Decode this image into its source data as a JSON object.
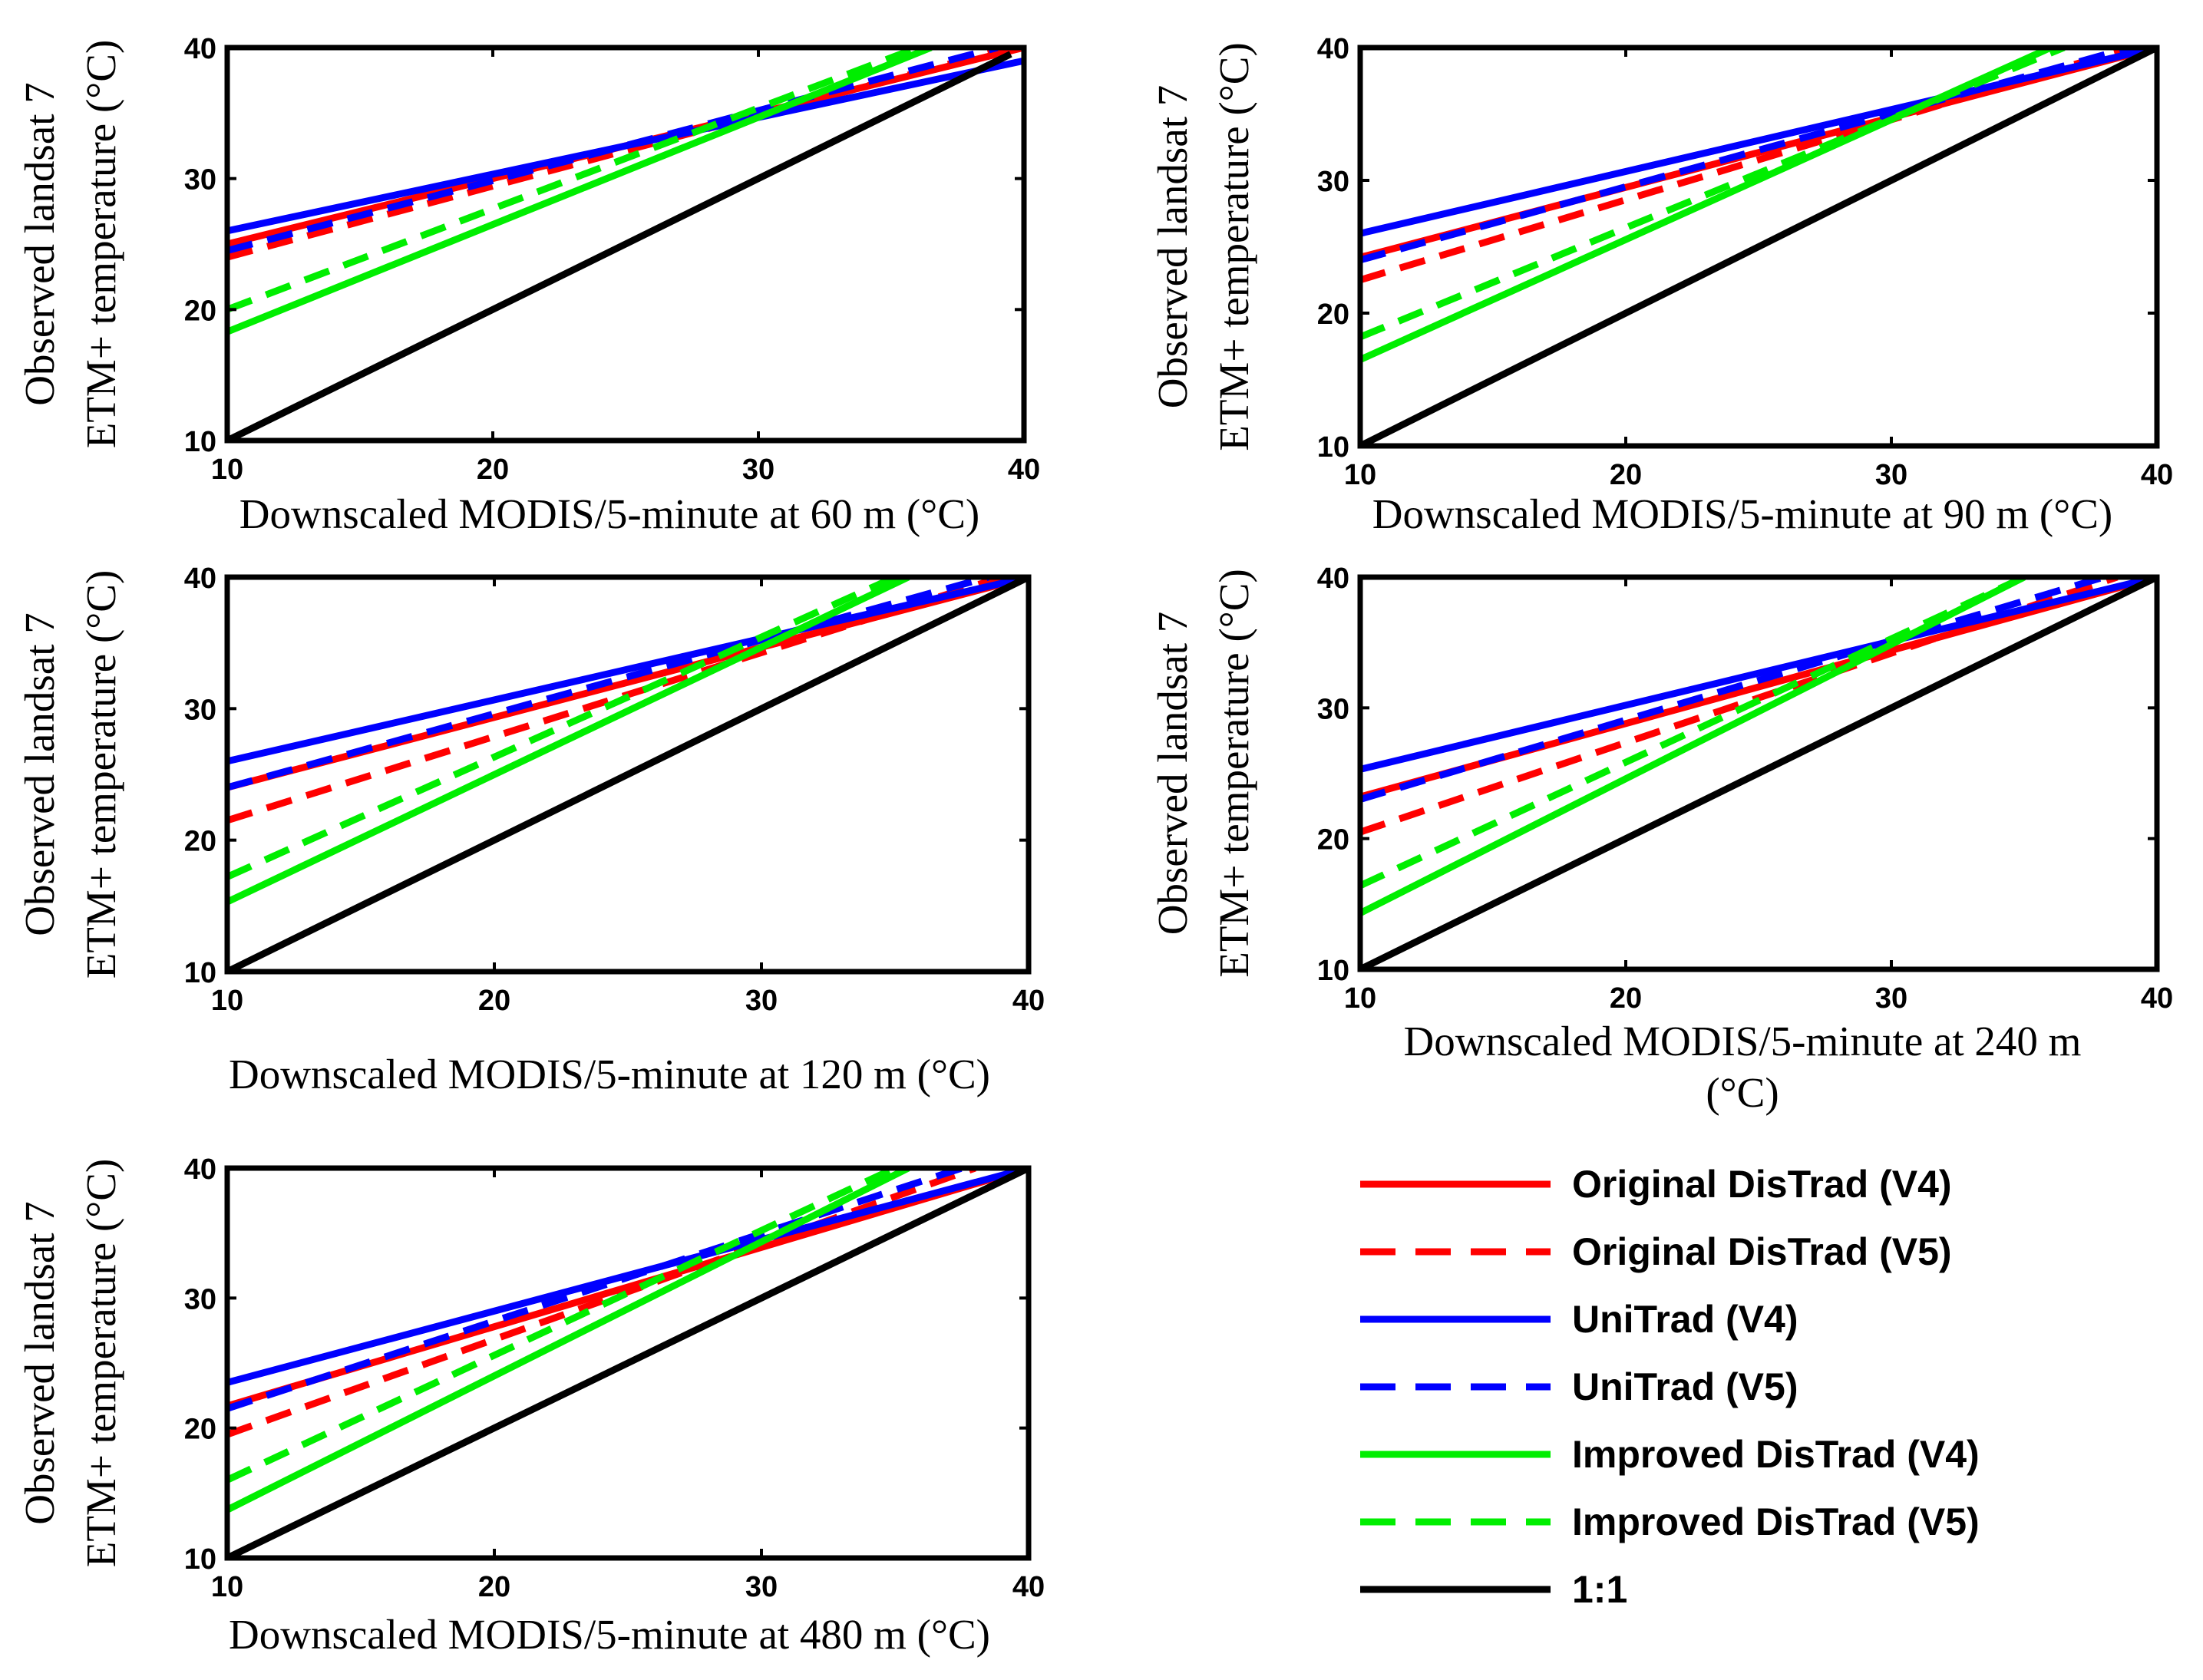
{
  "figure": {
    "y_label_line1": "Observed landsat 7",
    "y_label_line2": "ETM+ temperature (°C)"
  },
  "legend": [
    {
      "key": "orig_v4",
      "label": "Original DisTrad (V4)",
      "color": "#ff0000",
      "dashed": false
    },
    {
      "key": "orig_v5",
      "label": "Original DisTrad (V5)",
      "color": "#ff0000",
      "dashed": true
    },
    {
      "key": "uni_v4",
      "label": "UniTrad (V4)",
      "color": "#0000ff",
      "dashed": false
    },
    {
      "key": "uni_v5",
      "label": "UniTrad (V5)",
      "color": "#0000ff",
      "dashed": true
    },
    {
      "key": "imp_v4",
      "label": "Improved DisTrad (V4)",
      "color": "#00ee00",
      "dashed": false
    },
    {
      "key": "imp_v5",
      "label": "Improved DisTrad (V5)",
      "color": "#00ee00",
      "dashed": true
    },
    {
      "key": "one",
      "label": "1:1",
      "color": "#000000",
      "dashed": false
    }
  ],
  "chart_data": [
    {
      "type": "line",
      "xlabel": "Downscaled MODIS/5-minute at 60 m (°C)",
      "ylabel": "Observed landsat 7 ETM+ temperature (°C)",
      "xlim": [
        10,
        40
      ],
      "ylim": [
        10,
        40
      ],
      "xticks": [
        "10",
        "20",
        "30",
        "40"
      ],
      "yticks": [
        "10",
        "20",
        "30",
        "40"
      ],
      "series": [
        {
          "key": "orig_v4",
          "name": "Original DisTrad (V4)",
          "x": [
            10,
            40
          ],
          "y": [
            25,
            40
          ]
        },
        {
          "key": "orig_v5",
          "name": "Original DisTrad (V5)",
          "x": [
            10,
            39.5
          ],
          "y": [
            24,
            40
          ]
        },
        {
          "key": "uni_v4",
          "name": "UniTrad (V4)",
          "x": [
            10,
            40
          ],
          "y": [
            26,
            39
          ]
        },
        {
          "key": "uni_v5",
          "name": "UniTrad (V5)",
          "x": [
            10,
            39
          ],
          "y": [
            24.5,
            40
          ]
        },
        {
          "key": "imp_v4",
          "name": "Improved DisTrad (V4)",
          "x": [
            10,
            36.5
          ],
          "y": [
            18.3,
            40
          ]
        },
        {
          "key": "imp_v5",
          "name": "Improved DisTrad (V5)",
          "x": [
            10,
            36
          ],
          "y": [
            20,
            40
          ]
        },
        {
          "key": "one",
          "name": "1:1",
          "x": [
            10,
            39.5
          ],
          "y": [
            10,
            39.5
          ]
        }
      ]
    },
    {
      "type": "line",
      "xlabel": "Downscaled MODIS/5-minute at 90 m (°C)",
      "ylabel": "Observed landsat 7 ETM+ temperature (°C)",
      "xlim": [
        10,
        40
      ],
      "ylim": [
        10,
        40
      ],
      "xticks": [
        "10",
        "20",
        "30",
        "40"
      ],
      "yticks": [
        "10",
        "20",
        "30",
        "40"
      ],
      "series": [
        {
          "key": "orig_v4",
          "name": "Original DisTrad (V4)",
          "x": [
            10,
            40
          ],
          "y": [
            24.2,
            40
          ]
        },
        {
          "key": "orig_v5",
          "name": "Original DisTrad (V5)",
          "x": [
            10,
            39
          ],
          "y": [
            22.5,
            40
          ]
        },
        {
          "key": "uni_v4",
          "name": "UniTrad (V4)",
          "x": [
            10,
            40
          ],
          "y": [
            26,
            40
          ]
        },
        {
          "key": "uni_v5",
          "name": "UniTrad (V5)",
          "x": [
            10,
            39
          ],
          "y": [
            24,
            40
          ]
        },
        {
          "key": "imp_v4",
          "name": "Improved DisTrad (V4)",
          "x": [
            10,
            36
          ],
          "y": [
            16.5,
            40
          ]
        },
        {
          "key": "imp_v5",
          "name": "Improved DisTrad (V5)",
          "x": [
            10,
            36.5
          ],
          "y": [
            18.2,
            40
          ]
        },
        {
          "key": "one",
          "name": "1:1",
          "x": [
            10,
            40
          ],
          "y": [
            10,
            40
          ]
        }
      ]
    },
    {
      "type": "line",
      "xlabel": "Downscaled MODIS/5-minute at 120 m (°C)",
      "ylabel": "Observed landsat 7 ETM+ temperature (°C)",
      "xlim": [
        10,
        40
      ],
      "ylim": [
        10,
        40
      ],
      "xticks": [
        "10",
        "20",
        "30",
        "40"
      ],
      "yticks": [
        "10",
        "20",
        "30",
        "40"
      ],
      "series": [
        {
          "key": "orig_v4",
          "name": "Original DisTrad (V4)",
          "x": [
            10,
            40
          ],
          "y": [
            24,
            40
          ]
        },
        {
          "key": "orig_v5",
          "name": "Original DisTrad (V5)",
          "x": [
            10,
            39
          ],
          "y": [
            21.5,
            40
          ]
        },
        {
          "key": "uni_v4",
          "name": "UniTrad (V4)",
          "x": [
            10,
            40
          ],
          "y": [
            26,
            40
          ]
        },
        {
          "key": "uni_v5",
          "name": "UniTrad (V5)",
          "x": [
            10,
            38.5
          ],
          "y": [
            24,
            40
          ]
        },
        {
          "key": "imp_v4",
          "name": "Improved DisTrad (V4)",
          "x": [
            10,
            35.5
          ],
          "y": [
            15.3,
            40
          ]
        },
        {
          "key": "imp_v5",
          "name": "Improved DisTrad (V5)",
          "x": [
            10,
            35
          ],
          "y": [
            17.2,
            40
          ]
        },
        {
          "key": "one",
          "name": "1:1",
          "x": [
            10,
            40
          ],
          "y": [
            10,
            40
          ]
        }
      ]
    },
    {
      "type": "line",
      "xlabel": "Downscaled MODIS/5-minute at 240 m (°C)",
      "ylabel": "Observed landsat 7 ETM+ temperature (°C)",
      "xlim": [
        10,
        40
      ],
      "ylim": [
        10,
        40
      ],
      "xticks": [
        "10",
        "20",
        "30",
        "40"
      ],
      "yticks": [
        "10",
        "20",
        "30",
        "40"
      ],
      "series": [
        {
          "key": "orig_v4",
          "name": "Original DisTrad (V4)",
          "x": [
            10,
            40
          ],
          "y": [
            23.2,
            40
          ]
        },
        {
          "key": "orig_v5",
          "name": "Original DisTrad (V5)",
          "x": [
            10,
            38.5
          ],
          "y": [
            20.5,
            40
          ]
        },
        {
          "key": "uni_v4",
          "name": "UniTrad (V4)",
          "x": [
            10,
            40
          ],
          "y": [
            25.3,
            40
          ]
        },
        {
          "key": "uni_v5",
          "name": "UniTrad (V5)",
          "x": [
            10,
            38
          ],
          "y": [
            23,
            40
          ]
        },
        {
          "key": "imp_v4",
          "name": "Improved DisTrad (V4)",
          "x": [
            10,
            35
          ],
          "y": [
            14.3,
            40
          ]
        },
        {
          "key": "imp_v5",
          "name": "Improved DisTrad (V5)",
          "x": [
            10,
            35
          ],
          "y": [
            16.4,
            40
          ]
        },
        {
          "key": "one",
          "name": "1:1",
          "x": [
            10,
            40
          ],
          "y": [
            10,
            40
          ]
        }
      ]
    },
    {
      "type": "line",
      "xlabel": "Downscaled MODIS/5-minute at 480 m (°C)",
      "ylabel": "Observed landsat 7 ETM+ temperature (°C)",
      "xlim": [
        10,
        40
      ],
      "ylim": [
        10,
        40
      ],
      "xticks": [
        "10",
        "20",
        "30",
        "40"
      ],
      "yticks": [
        "10",
        "20",
        "30",
        "40"
      ],
      "series": [
        {
          "key": "orig_v4",
          "name": "Original DisTrad (V4)",
          "x": [
            10,
            40
          ],
          "y": [
            21.7,
            40
          ]
        },
        {
          "key": "orig_v5",
          "name": "Original DisTrad (V5)",
          "x": [
            10,
            38
          ],
          "y": [
            19.5,
            40
          ]
        },
        {
          "key": "uni_v4",
          "name": "UniTrad (V4)",
          "x": [
            10,
            40
          ],
          "y": [
            23.5,
            40
          ]
        },
        {
          "key": "uni_v5",
          "name": "UniTrad (V5)",
          "x": [
            10,
            37.5
          ],
          "y": [
            21.5,
            40
          ]
        },
        {
          "key": "imp_v4",
          "name": "Improved DisTrad (V4)",
          "x": [
            10,
            35.5
          ],
          "y": [
            13.7,
            40
          ]
        },
        {
          "key": "imp_v5",
          "name": "Improved DisTrad (V5)",
          "x": [
            10,
            35
          ],
          "y": [
            16,
            40
          ]
        },
        {
          "key": "one",
          "name": "1:1",
          "x": [
            10,
            40
          ],
          "y": [
            10,
            40
          ]
        }
      ]
    }
  ]
}
